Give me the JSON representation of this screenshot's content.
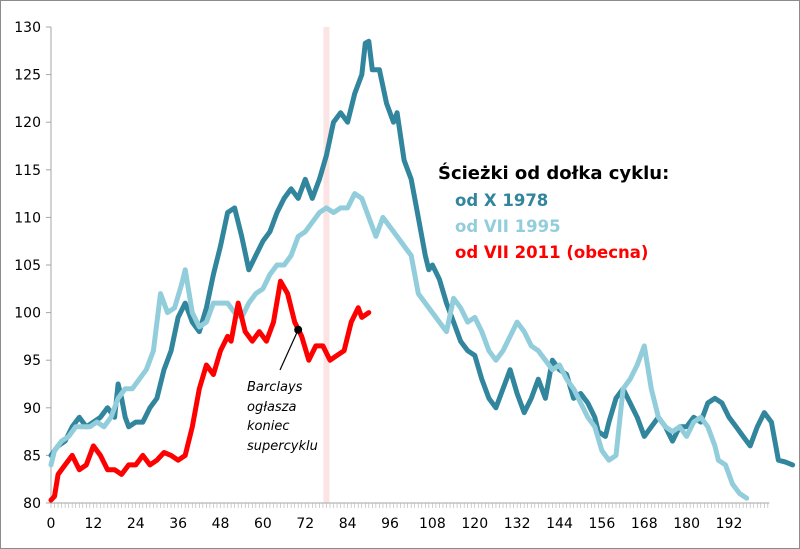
{
  "chart_data": {
    "type": "line",
    "title": "",
    "xlabel": "",
    "ylabel": "",
    "xlim": [
      0,
      202
    ],
    "ylim": [
      80,
      130
    ],
    "x_ticks": [
      0,
      12,
      24,
      36,
      48,
      60,
      72,
      84,
      96,
      108,
      120,
      132,
      144,
      156,
      168,
      180,
      192
    ],
    "y_ticks": [
      80,
      85,
      90,
      95,
      100,
      105,
      110,
      115,
      120,
      125,
      130
    ],
    "grid": false,
    "highlight_x": 78,
    "legend": {
      "title": "Ścieżki od dołka cyklu:",
      "placement": "center-right"
    },
    "series": [
      {
        "name": "od X 1978",
        "color": "#31859c",
        "points": [
          [
            0,
            85
          ],
          [
            2,
            86
          ],
          [
            4,
            86.5
          ],
          [
            6,
            88
          ],
          [
            8,
            89
          ],
          [
            10,
            88
          ],
          [
            12,
            88.5
          ],
          [
            14,
            89
          ],
          [
            16,
            90
          ],
          [
            18,
            89
          ],
          [
            19,
            92.5
          ],
          [
            20,
            91
          ],
          [
            21,
            89
          ],
          [
            22,
            88
          ],
          [
            24,
            88.5
          ],
          [
            26,
            88.5
          ],
          [
            28,
            90
          ],
          [
            30,
            91
          ],
          [
            32,
            94
          ],
          [
            34,
            96
          ],
          [
            36,
            99.5
          ],
          [
            38,
            101
          ],
          [
            40,
            99
          ],
          [
            42,
            98
          ],
          [
            44,
            100.5
          ],
          [
            46,
            104
          ],
          [
            48,
            107
          ],
          [
            50,
            110.5
          ],
          [
            52,
            111
          ],
          [
            54,
            108
          ],
          [
            56,
            104.5
          ],
          [
            58,
            106
          ],
          [
            60,
            107.5
          ],
          [
            62,
            108.5
          ],
          [
            64,
            110.5
          ],
          [
            66,
            112
          ],
          [
            68,
            113
          ],
          [
            70,
            112
          ],
          [
            72,
            114
          ],
          [
            74,
            112
          ],
          [
            76,
            114
          ],
          [
            78,
            116.5
          ],
          [
            80,
            120
          ],
          [
            82,
            121
          ],
          [
            84,
            120
          ],
          [
            86,
            123
          ],
          [
            88,
            125
          ],
          [
            89,
            128.3
          ],
          [
            90,
            128.5
          ],
          [
            91,
            125.5
          ],
          [
            93,
            125.5
          ],
          [
            95,
            122
          ],
          [
            97,
            120
          ],
          [
            98,
            121
          ],
          [
            100,
            116
          ],
          [
            102,
            114
          ],
          [
            104,
            110
          ],
          [
            106,
            106
          ],
          [
            107,
            104.5
          ],
          [
            108,
            105
          ],
          [
            110,
            103.5
          ],
          [
            112,
            101
          ],
          [
            114,
            99
          ],
          [
            116,
            97
          ],
          [
            118,
            96
          ],
          [
            120,
            95.5
          ],
          [
            122,
            93
          ],
          [
            124,
            91
          ],
          [
            126,
            90
          ],
          [
            128,
            92
          ],
          [
            130,
            94
          ],
          [
            132,
            91.5
          ],
          [
            134,
            89.5
          ],
          [
            136,
            91
          ],
          [
            138,
            93
          ],
          [
            140,
            91
          ],
          [
            142,
            95
          ],
          [
            144,
            94
          ],
          [
            146,
            93.5
          ],
          [
            148,
            91
          ],
          [
            150,
            91.5
          ],
          [
            152,
            90.5
          ],
          [
            154,
            89
          ],
          [
            155,
            87.5
          ],
          [
            157,
            87
          ],
          [
            158,
            88.5
          ],
          [
            160,
            91
          ],
          [
            162,
            92
          ],
          [
            164,
            90.5
          ],
          [
            166,
            89
          ],
          [
            168,
            87
          ],
          [
            170,
            88
          ],
          [
            172,
            89
          ],
          [
            174,
            88
          ],
          [
            176,
            86.5
          ],
          [
            178,
            88
          ],
          [
            180,
            88
          ],
          [
            182,
            89
          ],
          [
            184,
            88.5
          ],
          [
            186,
            90.5
          ],
          [
            188,
            91
          ],
          [
            190,
            90.5
          ],
          [
            192,
            89
          ],
          [
            194,
            88
          ],
          [
            196,
            87
          ],
          [
            198,
            86
          ],
          [
            200,
            88
          ],
          [
            202,
            89.5
          ],
          [
            204,
            88.5
          ],
          [
            206,
            84.5
          ],
          [
            208,
            84.3
          ],
          [
            210,
            84
          ]
        ]
      },
      {
        "name": "od VII 1995",
        "color": "#92cddc",
        "points": [
          [
            0,
            84
          ],
          [
            1,
            85.5
          ],
          [
            3,
            86.5
          ],
          [
            5,
            87
          ],
          [
            7,
            88
          ],
          [
            9,
            88
          ],
          [
            11,
            88
          ],
          [
            13,
            88.5
          ],
          [
            15,
            88
          ],
          [
            17,
            89
          ],
          [
            19,
            91
          ],
          [
            21,
            92
          ],
          [
            23,
            92
          ],
          [
            25,
            93
          ],
          [
            27,
            94
          ],
          [
            29,
            96
          ],
          [
            31,
            102
          ],
          [
            33,
            100
          ],
          [
            35,
            100.5
          ],
          [
            37,
            103
          ],
          [
            38,
            104.5
          ],
          [
            40,
            100
          ],
          [
            42,
            98.5
          ],
          [
            44,
            99
          ],
          [
            46,
            101
          ],
          [
            48,
            101
          ],
          [
            50,
            101
          ],
          [
            52,
            100
          ],
          [
            54,
            99.5
          ],
          [
            56,
            101
          ],
          [
            58,
            102
          ],
          [
            60,
            102.5
          ],
          [
            62,
            104
          ],
          [
            64,
            105
          ],
          [
            66,
            105
          ],
          [
            68,
            106
          ],
          [
            70,
            108
          ],
          [
            72,
            108.5
          ],
          [
            74,
            109.5
          ],
          [
            76,
            110.5
          ],
          [
            78,
            111
          ],
          [
            80,
            110.5
          ],
          [
            82,
            111
          ],
          [
            84,
            111
          ],
          [
            86,
            112.5
          ],
          [
            88,
            112
          ],
          [
            90,
            110
          ],
          [
            92,
            108
          ],
          [
            94,
            110
          ],
          [
            96,
            109
          ],
          [
            98,
            108
          ],
          [
            100,
            107
          ],
          [
            102,
            106
          ],
          [
            104,
            102
          ],
          [
            106,
            101
          ],
          [
            108,
            100
          ],
          [
            110,
            99
          ],
          [
            112,
            98
          ],
          [
            114,
            101.5
          ],
          [
            116,
            100.5
          ],
          [
            118,
            99
          ],
          [
            120,
            99.5
          ],
          [
            122,
            98
          ],
          [
            124,
            96
          ],
          [
            126,
            95
          ],
          [
            128,
            96
          ],
          [
            130,
            97.5
          ],
          [
            132,
            99
          ],
          [
            134,
            98
          ],
          [
            136,
            96.5
          ],
          [
            138,
            96
          ],
          [
            140,
            95
          ],
          [
            142,
            94
          ],
          [
            144,
            94.5
          ],
          [
            146,
            93
          ],
          [
            148,
            92
          ],
          [
            150,
            90.5
          ],
          [
            152,
            89
          ],
          [
            154,
            88
          ],
          [
            156,
            85.5
          ],
          [
            158,
            84.5
          ],
          [
            160,
            85
          ],
          [
            162,
            92
          ],
          [
            164,
            93
          ],
          [
            166,
            94.5
          ],
          [
            168,
            96.5
          ],
          [
            170,
            92
          ],
          [
            172,
            89
          ],
          [
            174,
            88
          ],
          [
            176,
            87.5
          ],
          [
            178,
            88
          ],
          [
            180,
            87
          ],
          [
            182,
            88.5
          ],
          [
            184,
            89
          ],
          [
            186,
            88
          ],
          [
            188,
            86
          ],
          [
            189,
            84.5
          ],
          [
            191,
            84
          ],
          [
            193,
            82
          ],
          [
            195,
            81
          ],
          [
            197,
            80.5
          ]
        ]
      },
      {
        "name": "od VII 2011 (obecna)",
        "color": "#ff0000",
        "points": [
          [
            0,
            80.3
          ],
          [
            1,
            80.7
          ],
          [
            2,
            83
          ],
          [
            4,
            84
          ],
          [
            6,
            85
          ],
          [
            8,
            83.5
          ],
          [
            10,
            84
          ],
          [
            12,
            86
          ],
          [
            14,
            85
          ],
          [
            16,
            83.5
          ],
          [
            18,
            83.5
          ],
          [
            20,
            83
          ],
          [
            22,
            84
          ],
          [
            24,
            84
          ],
          [
            26,
            85
          ],
          [
            28,
            84
          ],
          [
            30,
            84.5
          ],
          [
            32,
            85.3
          ],
          [
            34,
            85
          ],
          [
            36,
            84.5
          ],
          [
            38,
            85
          ],
          [
            40,
            88
          ],
          [
            42,
            92
          ],
          [
            44,
            94.5
          ],
          [
            46,
            93.5
          ],
          [
            48,
            96
          ],
          [
            50,
            97.5
          ],
          [
            51,
            97
          ],
          [
            53,
            101
          ],
          [
            55,
            98
          ],
          [
            57,
            97
          ],
          [
            59,
            98
          ],
          [
            61,
            97
          ],
          [
            63,
            99
          ],
          [
            65,
            103.3
          ],
          [
            67,
            102
          ],
          [
            69,
            99
          ],
          [
            71,
            97.5
          ],
          [
            73,
            95
          ],
          [
            75,
            96.5
          ],
          [
            77,
            96.5
          ],
          [
            79,
            95
          ],
          [
            81,
            95.5
          ],
          [
            83,
            96
          ],
          [
            85,
            99
          ],
          [
            87,
            100.5
          ],
          [
            88,
            99.5
          ],
          [
            90,
            100
          ]
        ]
      }
    ],
    "annotation": {
      "text_lines": [
        "Barclays",
        "ogłasza",
        "koniec",
        "supercyklu"
      ],
      "x": 70,
      "y": 98.2
    }
  }
}
